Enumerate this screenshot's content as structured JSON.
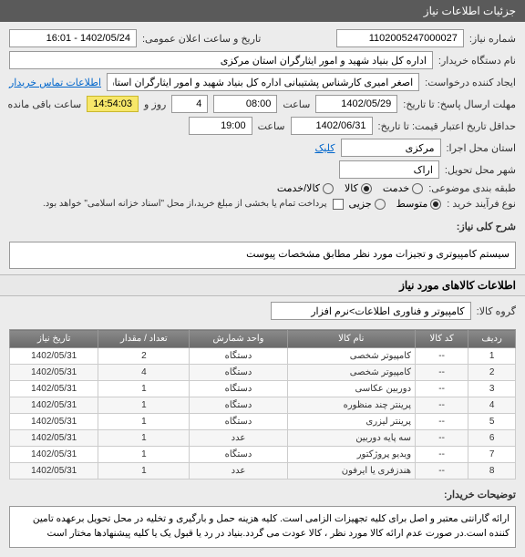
{
  "header": {
    "title": "جزئیات اطلاعات نیاز"
  },
  "form": {
    "need_no_label": "شماره نیاز:",
    "need_no": "1102005247000027",
    "announce_label": "تاریخ و ساعت اعلان عمومی:",
    "announce_val": "1402/05/24 - 16:01",
    "buyer_org_label": "نام دستگاه خریدار:",
    "buyer_org": "اداره کل بنیاد شهید و امور ایثارگران استان مرکزی",
    "creator_label": "ایجاد کننده درخواست:",
    "creator": "اصغر امیری کارشناس پشتیبانی اداره کل بنیاد شهید و امور ایثارگران استان مرکزی",
    "contact_link": "اطلاعات تماس خریدار",
    "deadline_label": "مهلت ارسال پاسخ: تا تاریخ:",
    "deadline_date": "1402/05/29",
    "time_label": "ساعت",
    "deadline_time": "08:00",
    "days_label": "روز و",
    "days": "4",
    "remain_badge": "14:54:03",
    "remain_text": "ساعت باقی مانده",
    "min_credit_label": "حداقل تاریخ اعتبار قیمت: تا تاریخ:",
    "min_credit_date": "1402/06/31",
    "min_credit_time": "19:00",
    "city_exec_label": "استان محل اجرا:",
    "city_exec": "مرکزی",
    "clickable_text": "کلیک",
    "city_deliver_label": "شهر محل تحویل:",
    "city_deliver": "اراک",
    "budget_label": "طبقه بندی موضوعی:",
    "budget_opts": {
      "service": "خدمت",
      "goods": "کالا",
      "both": "کالا/خدمت"
    },
    "process_label": "نوع فرآیند خرید :",
    "process_opts": {
      "mid": "متوسط",
      "minor": "جزیی"
    },
    "payment_note": "پرداخت تمام یا بخشی از مبلغ خرید،از محل \"اسناد خزانه اسلامی\" خواهد بود."
  },
  "need_desc": {
    "label": "شرح کلی نیاز:",
    "text": "سیستم کامپیوتری  و تجیزات مورد نظر مطابق مشخصات پیوست"
  },
  "goods_section": {
    "title": "اطلاعات کالاهای مورد نیاز",
    "group_label": "گروه کالا:",
    "group_val": "کامپیوتر و فناوری اطلاعات>نرم افزار"
  },
  "table": {
    "headers": {
      "row": "ردیف",
      "code": "کد کالا",
      "name": "نام کالا",
      "unit": "واحد شمارش",
      "qty": "تعداد / مقدار",
      "date": "تاریخ نیاز"
    },
    "rows": [
      {
        "r": "1",
        "code": "--",
        "name": "کامپیوتر شخصی",
        "unit": "دستگاه",
        "qty": "2",
        "date": "1402/05/31"
      },
      {
        "r": "2",
        "code": "--",
        "name": "کامپیوتر شخصی",
        "unit": "دستگاه",
        "qty": "4",
        "date": "1402/05/31"
      },
      {
        "r": "3",
        "code": "--",
        "name": "دوربین عکاسی",
        "unit": "دستگاه",
        "qty": "1",
        "date": "1402/05/31"
      },
      {
        "r": "4",
        "code": "--",
        "name": "پرینتر چند منظوره",
        "unit": "دستگاه",
        "qty": "1",
        "date": "1402/05/31"
      },
      {
        "r": "5",
        "code": "--",
        "name": "پرینتر لیزری",
        "unit": "دستگاه",
        "qty": "1",
        "date": "1402/05/31"
      },
      {
        "r": "6",
        "code": "--",
        "name": "سه پایه دوربین",
        "unit": "عدد",
        "qty": "1",
        "date": "1402/05/31"
      },
      {
        "r": "7",
        "code": "--",
        "name": "ویدیو پروژکتور",
        "unit": "دستگاه",
        "qty": "1",
        "date": "1402/05/31"
      },
      {
        "r": "8",
        "code": "--",
        "name": "هندزفری یا ایرفون",
        "unit": "عدد",
        "qty": "1",
        "date": "1402/05/31"
      }
    ]
  },
  "buyer_note": {
    "label": "توضیحات خریدار:",
    "text": "ارائه گارانتی معتبر و اصل برای کلیه تجهیزات الزامی است. کلیه هزینه حمل و بارگیری و تخلیه در محل تحویل برعهده تامین کننده است.در صورت عدم ارائه کالا مورد نظر ، کالا عودت می گردد.بنیاد در رد یا قبول یک یا کلیه پیشنهادها مختار است"
  }
}
